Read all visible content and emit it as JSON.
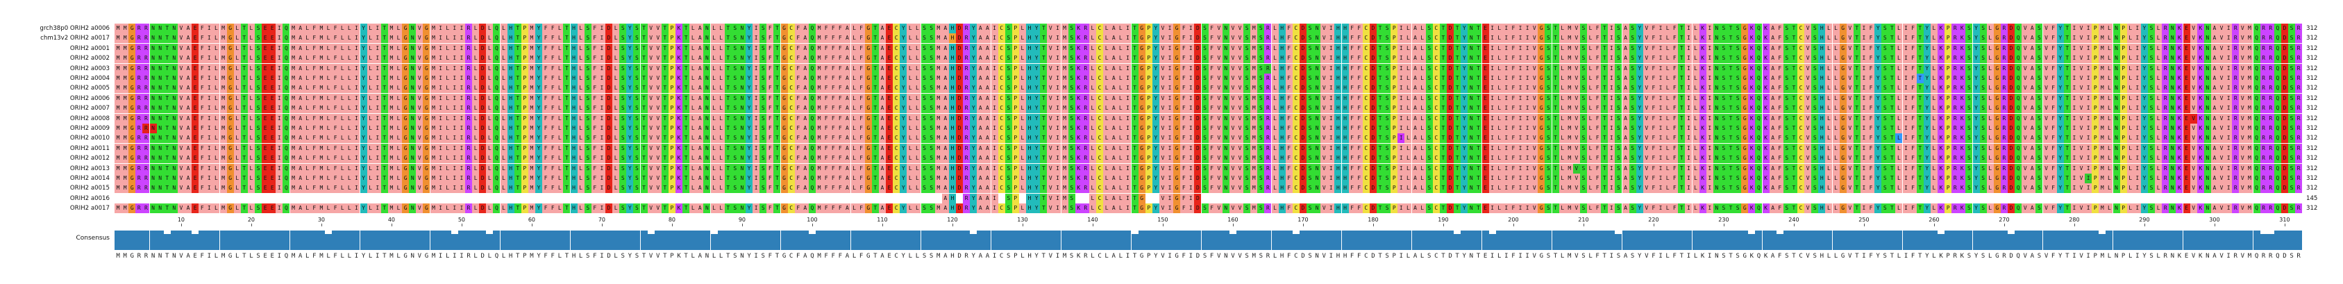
{
  "alignment": {
    "names": [
      "grch38p0 ORIH2 a0006",
      "chm13v2 ORIH2 a0017",
      "ORIH2 a0001",
      "ORIH2 a0002",
      "ORIH2 a0003",
      "ORIH2 a0004",
      "ORIH2 a0005",
      "ORIH2 a0006",
      "ORIH2 a0007",
      "ORIH2 a0008",
      "ORIH2 a0009",
      "ORIH2 a0010",
      "ORIH2 a0011",
      "ORIH2 a0012",
      "ORIH2 a0013",
      "ORIH2 a0014",
      "ORIH2 a0015",
      "ORIH2 a0016",
      "ORIH2 a0017"
    ],
    "lengths": [
      "312",
      "312",
      "312",
      "312",
      "312",
      "312",
      "312",
      "312",
      "312",
      "312",
      "312",
      "312",
      "312",
      "312",
      "312",
      "312",
      "312",
      "145",
      "312"
    ],
    "consensus_label": "Consensus",
    "consensus_sequence": "MMGRRNNTNVAEFILMGLTLSEEIQMALFMLFLLIYLITMLGNVGMILIIRLDLQLHTPMYFFLTHLSFIDLSYSTVVTPKTLANLLTSNYISFTGCFAQMFFFALFGTAECYLLSSMAHDRYAAICSPLHYTVIMSKRLCLALITGPYVIGFIDSFVNVVSMSRLHFCDSNVIHHFFCDTSPILALSCTDTYNTEILIFIIVGSTLMVSLFTISASYVFILFTILKINSTSGKQKAFSTCVSHLLGVTIFYSTLIFTYLKPRKSYSLGRDQVASVFYTIVIPMLNPLIYSLRNKEVKNAVIRVMQRRQDSR",
    "ruler_ticks": [
      "10",
      "20",
      "30",
      "40",
      "50",
      "60",
      "70",
      "80",
      "90",
      "100",
      "110",
      "120",
      "130",
      "140",
      "150",
      "160",
      "170",
      "180",
      "190",
      "200",
      "210",
      "220",
      "230",
      "240",
      "250",
      "260",
      "270",
      "280",
      "290",
      "300",
      "310"
    ],
    "fragment_row_index": 17,
    "fragment_range": [
      118,
      154
    ],
    "variant_cells": [
      {
        "row": 10,
        "col": 4,
        "color": "#e6201a"
      },
      {
        "row": 10,
        "col": 5,
        "color": "#e6201a"
      },
      {
        "row": 1,
        "col": 119,
        "color": "#f0a030"
      },
      {
        "row": 4,
        "col": 164,
        "color": "#33cc33"
      },
      {
        "row": 9,
        "col": 296,
        "color": "#e6201a"
      },
      {
        "row": 11,
        "col": 254,
        "color": "#3399ff"
      },
      {
        "row": 5,
        "col": 257,
        "color": "#3399ff"
      },
      {
        "row": 15,
        "col": 281,
        "color": "#33cc33"
      },
      {
        "row": 11,
        "col": 183,
        "color": "#cc33ff"
      },
      {
        "row": 14,
        "col": 208,
        "color": "#33cc33"
      }
    ],
    "residue_colors": {
      "A": "#f6a6a6",
      "G": "#f09030",
      "L": "#f6a6a6",
      "I": "#f6a6a6",
      "V": "#f6a6a6",
      "M": "#f6a6a6",
      "F": "#f6a6a6",
      "W": "#f6a6a6",
      "P": "#f0e040",
      "C": "#f0e040",
      "S": "#33dd33",
      "T": "#33dd33",
      "N": "#33dd33",
      "Q": "#33dd33",
      "Y": "#22bbbb",
      "H": "#22bbbb",
      "K": "#cc44ff",
      "R": "#cc44ff",
      "D": "#e8241a",
      "E": "#e8241a"
    },
    "consensus_bar_color": "#2f7fb8"
  }
}
